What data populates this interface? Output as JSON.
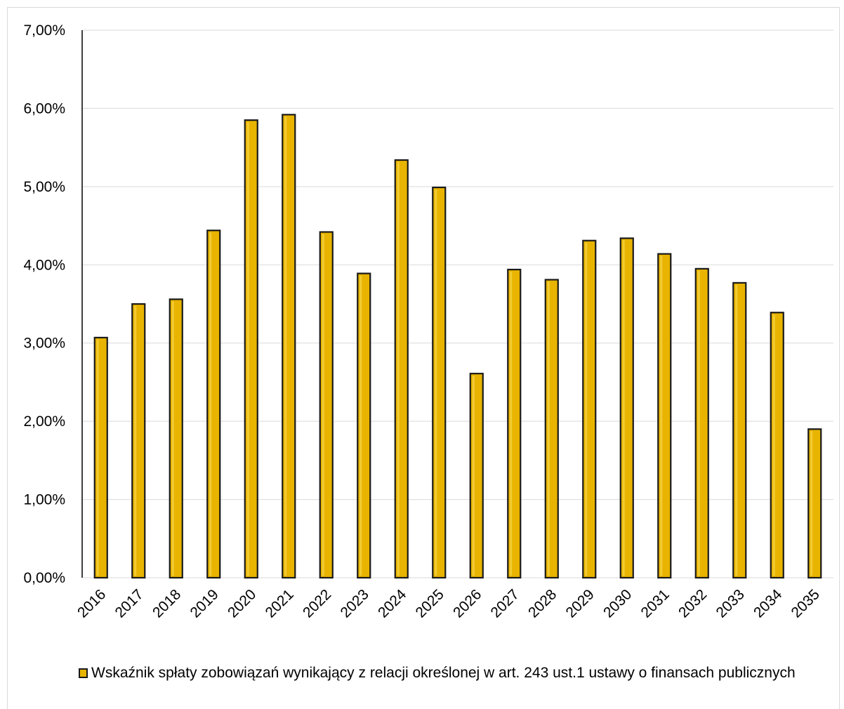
{
  "chart_data": {
    "type": "bar",
    "categories": [
      "2016",
      "2017",
      "2018",
      "2019",
      "2020",
      "2021",
      "2022",
      "2023",
      "2024",
      "2025",
      "2026",
      "2027",
      "2028",
      "2029",
      "2030",
      "2031",
      "2032",
      "2033",
      "2034",
      "2035"
    ],
    "series": [
      {
        "name": "Wskaźnik spłaty zobowiązań wynikający z relacji określonej w art. 243 ust.1 ustawy o finansach publicznych",
        "values": [
          3.07,
          3.5,
          3.56,
          4.44,
          5.85,
          5.92,
          4.42,
          3.89,
          5.34,
          4.99,
          2.61,
          3.94,
          3.81,
          4.31,
          4.34,
          4.14,
          3.95,
          3.77,
          3.39,
          1.9
        ]
      }
    ],
    "ylim": [
      0,
      7
    ],
    "yticks": [
      "0,00%",
      "1,00%",
      "2,00%",
      "3,00%",
      "4,00%",
      "5,00%",
      "6,00%",
      "7,00%"
    ],
    "grid": true,
    "legend_position": "bottom",
    "colors": {
      "bar_fill": "#e8b400",
      "bar_edge": "#1a1a1a",
      "grid": "#d9d9d9",
      "axis": "#000000"
    }
  }
}
